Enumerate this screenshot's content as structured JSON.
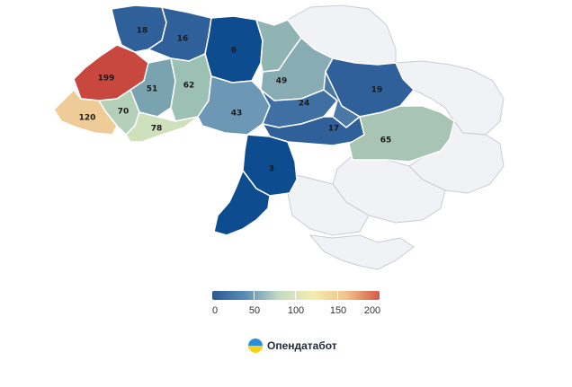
{
  "map": {
    "regions": [
      {
        "id": "rivne",
        "value": "18",
        "color": "#2f609a"
      },
      {
        "id": "zhytomyr",
        "value": "16",
        "color": "#2f609a"
      },
      {
        "id": "kyiv",
        "value": "6",
        "color": "#0d4d8f"
      },
      {
        "id": "chernihiv",
        "value": "",
        "color": "#90b4b4"
      },
      {
        "id": "sumy",
        "value": "49",
        "color": "#87acb3"
      },
      {
        "id": "kharkiv",
        "value": "19",
        "color": "#2f609a"
      },
      {
        "id": "lviv",
        "value": "199",
        "color": "#c8473e"
      },
      {
        "id": "ternopil",
        "value": "51",
        "color": "#7aa3b0"
      },
      {
        "id": "khmelnytskyi",
        "value": "62",
        "color": "#9dc0b5"
      },
      {
        "id": "vinnytsia",
        "value": "43",
        "color": "#6d98b5"
      },
      {
        "id": "cherkasy",
        "value": "24",
        "color": "#3f6fa3"
      },
      {
        "id": "poltava",
        "value": "",
        "color": "#4a79a8"
      },
      {
        "id": "zakarpattia",
        "value": "120",
        "color": "#efcb98"
      },
      {
        "id": "ivano-frankivsk",
        "value": "70",
        "color": "#b5d0b8"
      },
      {
        "id": "chernivtsi",
        "value": "78",
        "color": "#cfe0bd"
      },
      {
        "id": "kirovohrad",
        "value": "17",
        "color": "#2f609a"
      },
      {
        "id": "dnipro",
        "value": "65",
        "color": "#a7c4b4"
      },
      {
        "id": "mykolaiv",
        "value": "3",
        "color": "#0d4d8f"
      },
      {
        "id": "odesa",
        "value": "",
        "color": "#0d4d8f"
      }
    ],
    "no_data_color": "#f1f2f6",
    "border_color": "#ffffff"
  },
  "legend": {
    "ticks": [
      "0",
      "50",
      "100",
      "150",
      "200"
    ],
    "colors": [
      "#2b5a93",
      "#5b8db8",
      "#c3dcc4",
      "#f3edb0",
      "#f2c28c",
      "#d5594b"
    ]
  },
  "brand": {
    "name": "Опендатабот",
    "logo_colors": [
      "#2b8fd8",
      "#f6d21b"
    ]
  }
}
